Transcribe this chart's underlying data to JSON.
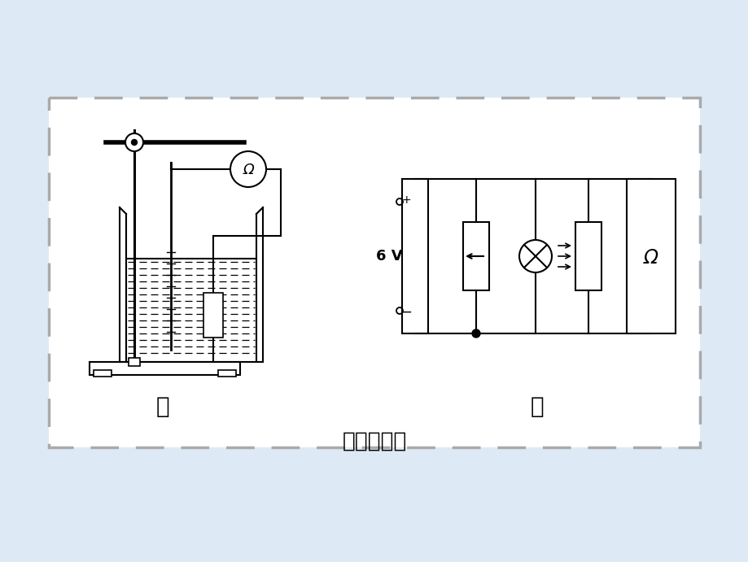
{
  "bg_color": "#ddeaf5",
  "panel_bg": "#ffffff",
  "panel_edge_color": "#aaaaaa",
  "text_color": "#222222",
  "title_text": "实验原理图",
  "label_jia": "甲",
  "label_yi": "乙",
  "voltage_label": "6 V"
}
